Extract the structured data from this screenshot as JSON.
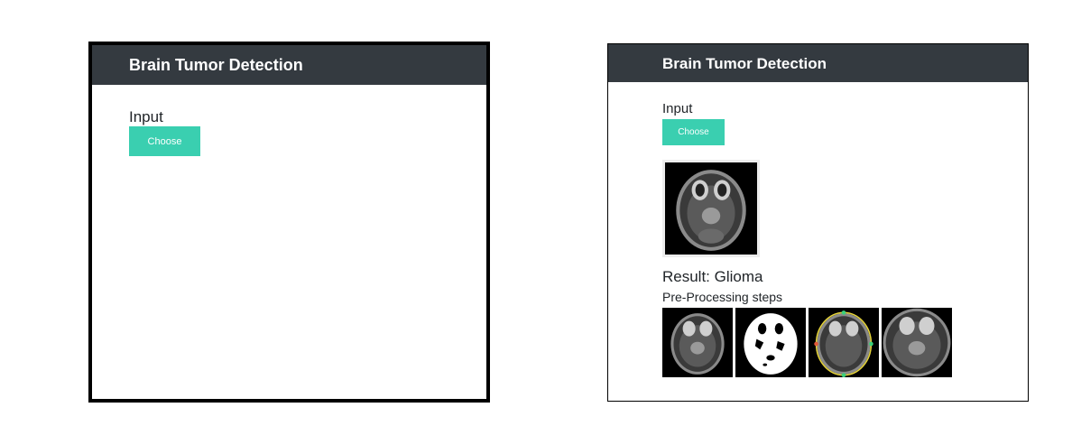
{
  "panels": [
    {
      "navbar": {
        "brand": "Brain Tumor Detection"
      },
      "input": {
        "label": "Input",
        "button_label": "Choose"
      }
    },
    {
      "navbar": {
        "brand": "Brain Tumor Detection"
      },
      "input": {
        "label": "Input",
        "button_label": "Choose"
      },
      "result": {
        "text": "Result: Glioma"
      },
      "preprocessing": {
        "title": "Pre-Processing steps",
        "steps": [
          {
            "icon": "mri-original-icon"
          },
          {
            "icon": "mri-threshold-icon"
          },
          {
            "icon": "mri-contour-icon"
          },
          {
            "icon": "mri-cropped-icon"
          }
        ]
      }
    }
  ],
  "colors": {
    "navbar": "#343a40",
    "button": "#3acfb0",
    "contour_yellow": "#e6d43a",
    "contour_green": "#3ad17a"
  }
}
